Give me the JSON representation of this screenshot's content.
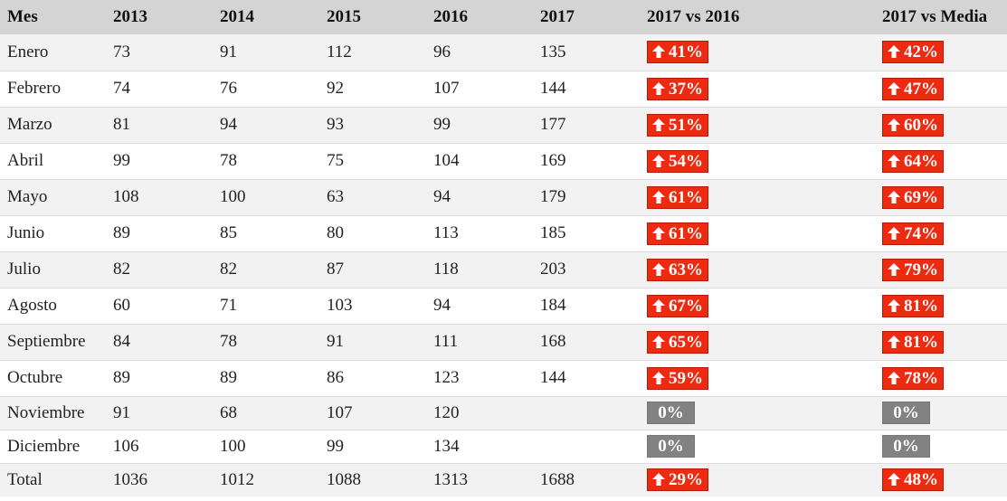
{
  "table": {
    "headers": [
      "Mes",
      "2013",
      "2014",
      "2015",
      "2016",
      "2017",
      "2017 vs 2016",
      "2017 vs Media"
    ],
    "rows": [
      {
        "mes": "Enero",
        "y2013": "73",
        "y2014": "91",
        "y2015": "112",
        "y2016": "96",
        "y2017": "135",
        "vs2016": "41%",
        "vs2016_dir": "up",
        "vsMedia": "42%",
        "vsMedia_dir": "up"
      },
      {
        "mes": "Febrero",
        "y2013": "74",
        "y2014": "76",
        "y2015": "92",
        "y2016": "107",
        "y2017": "144",
        "vs2016": "37%",
        "vs2016_dir": "up",
        "vsMedia": "47%",
        "vsMedia_dir": "up"
      },
      {
        "mes": "Marzo",
        "y2013": "81",
        "y2014": "94",
        "y2015": "93",
        "y2016": "99",
        "y2017": "177",
        "vs2016": "51%",
        "vs2016_dir": "up",
        "vsMedia": "60%",
        "vsMedia_dir": "up"
      },
      {
        "mes": "Abril",
        "y2013": "99",
        "y2014": "78",
        "y2015": "75",
        "y2016": "104",
        "y2017": "169",
        "vs2016": "54%",
        "vs2016_dir": "up",
        "vsMedia": "64%",
        "vsMedia_dir": "up"
      },
      {
        "mes": "Mayo",
        "y2013": "108",
        "y2014": "100",
        "y2015": "63",
        "y2016": "94",
        "y2017": "179",
        "vs2016": "61%",
        "vs2016_dir": "up",
        "vsMedia": "69%",
        "vsMedia_dir": "up"
      },
      {
        "mes": "Junio",
        "y2013": "89",
        "y2014": "85",
        "y2015": "80",
        "y2016": "113",
        "y2017": "185",
        "vs2016": "61%",
        "vs2016_dir": "up",
        "vsMedia": "74%",
        "vsMedia_dir": "up"
      },
      {
        "mes": "Julio",
        "y2013": "82",
        "y2014": "82",
        "y2015": "87",
        "y2016": "118",
        "y2017": "203",
        "vs2016": "63%",
        "vs2016_dir": "up",
        "vsMedia": "79%",
        "vsMedia_dir": "up"
      },
      {
        "mes": "Agosto",
        "y2013": "60",
        "y2014": "71",
        "y2015": "103",
        "y2016": "94",
        "y2017": "184",
        "vs2016": "67%",
        "vs2016_dir": "up",
        "vsMedia": "81%",
        "vsMedia_dir": "up"
      },
      {
        "mes": "Septiembre",
        "y2013": "84",
        "y2014": "78",
        "y2015": "91",
        "y2016": "111",
        "y2017": "168",
        "vs2016": "65%",
        "vs2016_dir": "up",
        "vsMedia": "81%",
        "vsMedia_dir": "up"
      },
      {
        "mes": "Octubre",
        "y2013": "89",
        "y2014": "89",
        "y2015": "86",
        "y2016": "123",
        "y2017": "144",
        "vs2016": "59%",
        "vs2016_dir": "up",
        "vsMedia": "78%",
        "vsMedia_dir": "up"
      },
      {
        "mes": "Noviembre",
        "y2013": "91",
        "y2014": "68",
        "y2015": "107",
        "y2016": "120",
        "y2017": "",
        "vs2016": "0%",
        "vs2016_dir": "zero",
        "vsMedia": "0%",
        "vsMedia_dir": "zero"
      },
      {
        "mes": "Diciembre",
        "y2013": "106",
        "y2014": "100",
        "y2015": "99",
        "y2016": "134",
        "y2017": "",
        "vs2016": "0%",
        "vs2016_dir": "zero",
        "vsMedia": "0%",
        "vsMedia_dir": "zero"
      },
      {
        "mes": "Total",
        "y2013": "1036",
        "y2014": "1012",
        "y2015": "1088",
        "y2016": "1313",
        "y2017": "1688",
        "vs2016": "29%",
        "vs2016_dir": "up",
        "vsMedia": "48%",
        "vsMedia_dir": "up"
      }
    ]
  },
  "colors": {
    "header_bg": "#d4d4d4",
    "row_alt_bg": "#f2f2f2",
    "badge_up": "#ee2a10",
    "badge_zero": "#828282"
  },
  "icons": {
    "up": "arrow-up-icon"
  }
}
